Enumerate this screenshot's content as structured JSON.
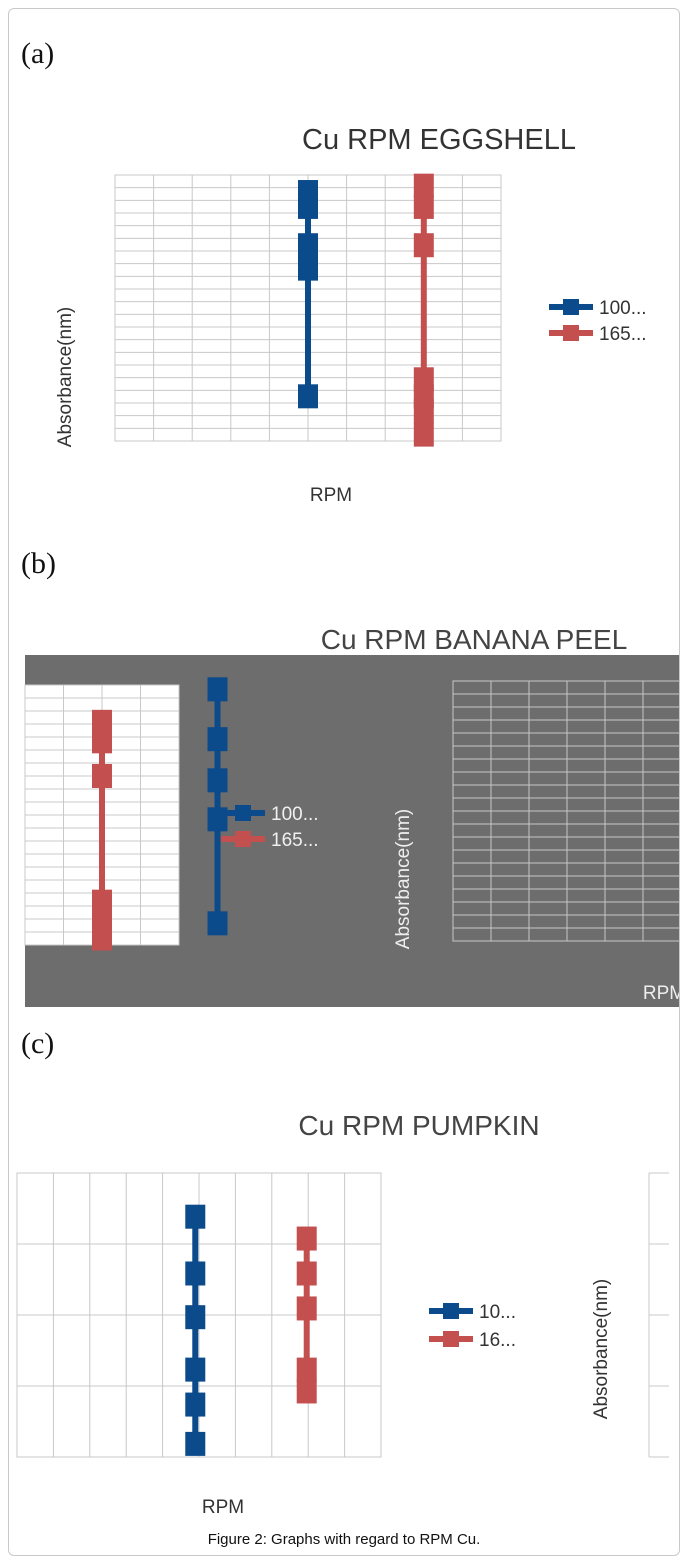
{
  "caption": "Figure 2: Graphs with regard to RPM Cu.",
  "colors": {
    "series_blue": "#0b4a8b",
    "series_red": "#c44f4f",
    "grid": "#c8c8c8",
    "panel_b_bg": "#6d6d6d"
  },
  "chart_data": [
    {
      "panel_label": "(a)",
      "type": "line",
      "title": "Cu RPM EGGSHELL",
      "xlabel": "RPM",
      "ylabel": "Absorbance(nm)",
      "grid": true,
      "legend_position": "right",
      "series": [
        {
          "name": "100...",
          "color": "#0b4a8b",
          "x": 5,
          "values": [
            2.1,
            8.1,
            9.2,
            11.0,
            11.7
          ]
        },
        {
          "name": "165...",
          "color": "#c44f4f",
          "x": 8,
          "values": [
            0.3,
            1.4,
            2.1,
            2.9,
            9.2,
            11.0,
            12.0
          ]
        }
      ]
    },
    {
      "panel_label": "(b)",
      "type": "line",
      "title": "Cu RPM BANANA PEEL",
      "xlabel": "RPM",
      "ylabel": "Absorbance(nm)",
      "grid": true,
      "legend_position": "center",
      "series": [
        {
          "name": "100...",
          "color": "#0b4a8b",
          "x": 5,
          "values": [
            1.0,
            5.8,
            7.6,
            9.5,
            11.8
          ]
        },
        {
          "name": "165...",
          "color": "#c44f4f",
          "x": 2,
          "values": [
            0.3,
            1.2,
            2.0,
            7.8,
            9.4,
            10.3
          ]
        }
      ]
    },
    {
      "panel_label": "(c)",
      "type": "line",
      "title": "Cu RPM PUMPKIN",
      "xlabel": "RPM",
      "ylabel": "Absorbance(nm)",
      "grid": true,
      "legend_position": "right",
      "series": [
        {
          "name": "10...",
          "color": "#0b4a8b",
          "x": 5,
          "values": [
            0.3,
            1.2,
            2.0,
            3.2,
            4.2,
            5.5
          ]
        },
        {
          "name": "16...",
          "color": "#c44f4f",
          "x": 8,
          "values": [
            1.5,
            2.0,
            3.4,
            4.2,
            5.0
          ]
        }
      ]
    }
  ]
}
